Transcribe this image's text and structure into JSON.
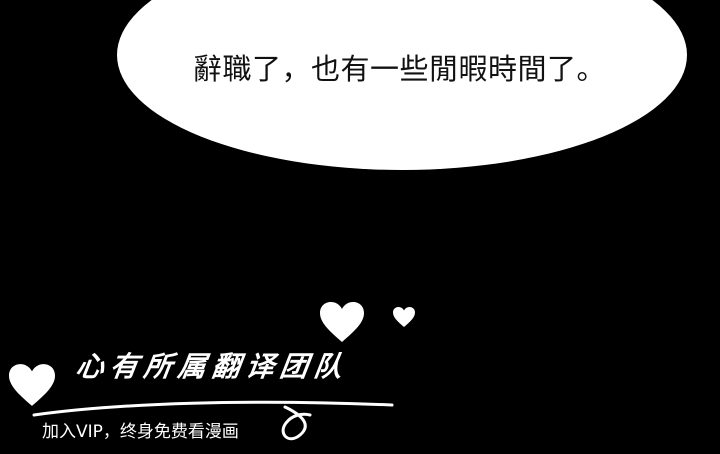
{
  "speech_bubble": {
    "text": "辭職了，也有一些閒暇時間了。"
  },
  "watermark": {
    "title": "心有所属翻译团队",
    "subtitle": "加入VIP，终身免费看漫画",
    "icons": [
      "heart-icon",
      "heart-icon",
      "heart-icon"
    ]
  },
  "colors": {
    "background": "#000000",
    "bubble": "#ffffff",
    "bubble_text": "#111111",
    "watermark": "#ffffff"
  }
}
